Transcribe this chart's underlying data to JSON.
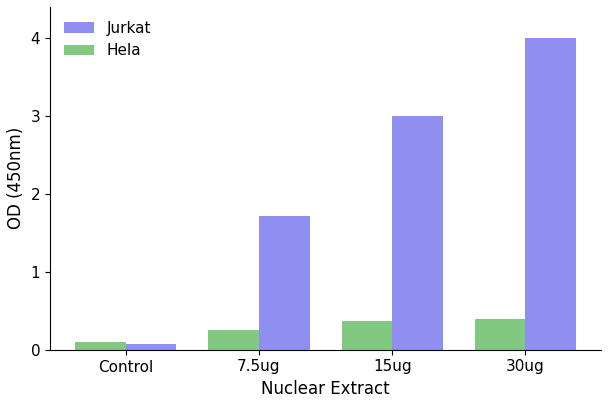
{
  "categories": [
    "Control",
    "7.5ug",
    "15ug",
    "30ug"
  ],
  "jurkat_values": [
    0.07,
    1.72,
    3.0,
    4.0
  ],
  "hela_values": [
    0.1,
    0.25,
    0.37,
    0.4
  ],
  "jurkat_color": "#7b7bef",
  "hela_color": "#6bbf6b",
  "xlabel": "Nuclear Extract",
  "ylabel": "OD (450nm)",
  "ylim": [
    0,
    4.4
  ],
  "yticks": [
    0,
    1,
    2,
    3,
    4
  ],
  "legend_labels": [
    "Jurkat",
    "Hela"
  ],
  "bar_width": 0.38,
  "background_color": "#ffffff",
  "figsize": [
    6.08,
    4.05
  ],
  "dpi": 100
}
